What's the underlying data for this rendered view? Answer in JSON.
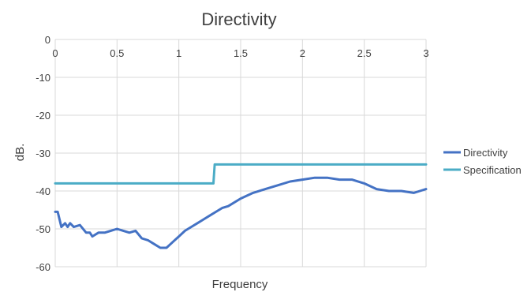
{
  "chart_data": {
    "type": "line",
    "title": "Directivity",
    "xlabel": "Frequency",
    "ylabel": "dB.",
    "xlim": [
      0,
      3
    ],
    "ylim": [
      -60,
      0
    ],
    "x_ticks": [
      0,
      0.5,
      1,
      1.5,
      2,
      2.5,
      3
    ],
    "x_tick_labels": [
      "0",
      "0.5",
      "1",
      "1.5",
      "2",
      "2.5",
      "3"
    ],
    "y_ticks": [
      0,
      -10,
      -20,
      -30,
      -40,
      -50,
      -60
    ],
    "y_tick_labels": [
      "0",
      "-10",
      "-20",
      "-30",
      "-40",
      "-50",
      "-60"
    ],
    "grid": true,
    "legend_position": "right",
    "series": [
      {
        "name": "Directivity",
        "color": "#4472C4",
        "x": [
          0,
          0.02,
          0.05,
          0.08,
          0.1,
          0.12,
          0.15,
          0.2,
          0.25,
          0.28,
          0.3,
          0.35,
          0.4,
          0.45,
          0.5,
          0.55,
          0.6,
          0.65,
          0.7,
          0.75,
          0.8,
          0.85,
          0.9,
          0.95,
          1.0,
          1.05,
          1.1,
          1.15,
          1.2,
          1.25,
          1.3,
          1.35,
          1.4,
          1.5,
          1.6,
          1.7,
          1.8,
          1.9,
          2.0,
          2.1,
          2.2,
          2.3,
          2.4,
          2.5,
          2.6,
          2.7,
          2.8,
          2.9,
          2.95,
          3.0
        ],
        "values": [
          -45.5,
          -45.5,
          -49.5,
          -48.5,
          -49.5,
          -48.5,
          -49.5,
          -49,
          -51,
          -51,
          -52,
          -51,
          -51,
          -50.5,
          -50,
          -50.5,
          -51,
          -50.5,
          -52.5,
          -53,
          -54,
          -55,
          -55,
          -53.5,
          -52,
          -50.5,
          -49.5,
          -48.5,
          -47.5,
          -46.5,
          -45.5,
          -44.5,
          -44,
          -42,
          -40.5,
          -39.5,
          -38.5,
          -37.5,
          -37,
          -36.5,
          -36.5,
          -37,
          -37,
          -38,
          -39.5,
          -40,
          -40,
          -40.5,
          -40,
          -39.5
        ]
      },
      {
        "name": "Specification",
        "color": "#4BACC6",
        "x": [
          0,
          1.28,
          1.29,
          3.0
        ],
        "values": [
          -38,
          -38,
          -33,
          -33
        ]
      }
    ]
  }
}
